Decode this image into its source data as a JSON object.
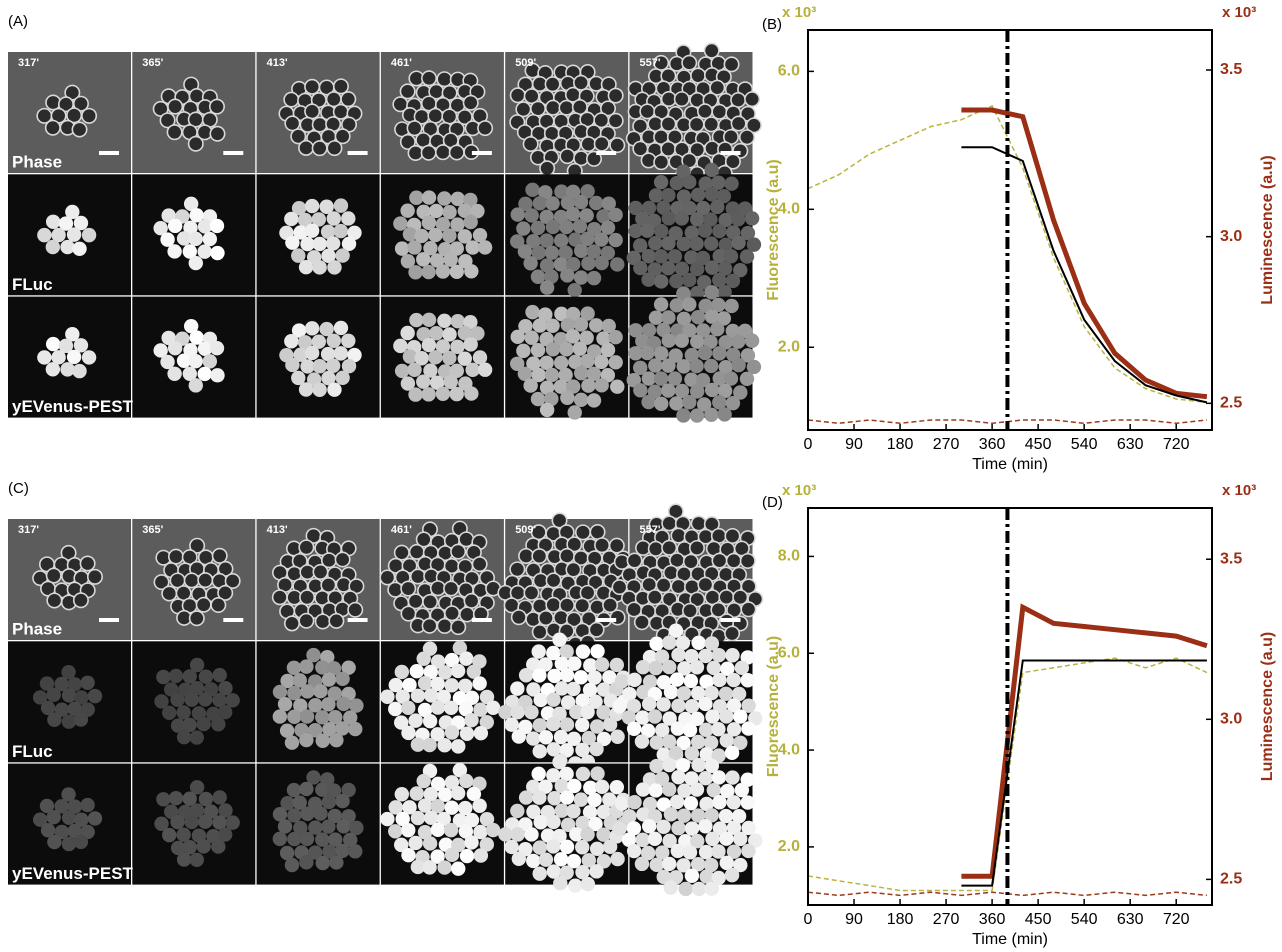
{
  "panels": [
    {
      "label": "(A)",
      "times": [
        "317'",
        "365'",
        "413'",
        "461'",
        "509'",
        "557'"
      ],
      "rows": [
        "Phase",
        "FLuc",
        "yEVenus-PEST"
      ]
    },
    {
      "label": "(C)",
      "times": [
        "317'",
        "365'",
        "413'",
        "461'",
        "509'",
        "557'"
      ],
      "rows": [
        "Phase",
        "FLuc",
        "yEVenus-PEST"
      ]
    }
  ],
  "chart_data": [
    {
      "type": "line",
      "label": "(B)",
      "xlabel": "Time (min)",
      "ylabel": "Fluorescence (a.u)",
      "y2label": "Luminescence (a.u)",
      "y_multiplier": "x 10³",
      "y2_multiplier": "x 10³",
      "x": [
        0,
        60,
        120,
        180,
        240,
        300,
        360,
        420,
        480,
        540,
        600,
        660,
        720,
        780
      ],
      "xlim": [
        0,
        790
      ],
      "xticks": [
        0,
        90,
        180,
        270,
        360,
        450,
        540,
        630,
        720
      ],
      "ylim": [
        0.8,
        6.6
      ],
      "yticks": [
        {
          "value": 2,
          "label": "2.0"
        },
        {
          "value": 4,
          "label": "4.0"
        },
        {
          "value": 6,
          "label": "6.0"
        }
      ],
      "y2lim": [
        2.42,
        3.62
      ],
      "y2ticks": [
        2.5,
        {
          "value": 3,
          "label": "3.0"
        },
        3.5
      ],
      "vline": 390,
      "series": [
        {
          "color": "#b8b43c",
          "dash": true,
          "values": [
            4.3,
            4.5,
            4.8,
            5.0,
            5.2,
            5.3,
            5.5,
            4.6,
            3.3,
            2.3,
            1.7,
            1.4,
            1.25,
            1.2
          ]
        },
        {
          "color": "#9b3a1c",
          "dash": true,
          "axis": "y2",
          "values": [
            2.45,
            2.44,
            2.45,
            2.44,
            2.45,
            2.45,
            2.44,
            2.45,
            2.45,
            2.44,
            2.45,
            2.45,
            2.44,
            2.45
          ]
        },
        {
          "color": "#9b2f16",
          "thick": true,
          "axis": "y2",
          "values": [
            null,
            null,
            null,
            null,
            null,
            3.38,
            3.38,
            3.36,
            3.05,
            2.8,
            2.65,
            2.57,
            2.53,
            2.52
          ]
        },
        {
          "color": "#000000",
          "values": [
            null,
            null,
            null,
            null,
            null,
            4.9,
            4.9,
            4.7,
            3.4,
            2.4,
            1.8,
            1.45,
            1.3,
            1.2
          ]
        }
      ]
    },
    {
      "type": "line",
      "label": "(D)",
      "xlabel": "Time (min)",
      "ylabel": "Fluorescence (a.u)",
      "y2label": "Luminescence (a.u)",
      "y_multiplier": "x 10³",
      "y2_multiplier": "x 10³",
      "x": [
        0,
        60,
        120,
        180,
        240,
        300,
        360,
        420,
        480,
        540,
        600,
        660,
        720,
        780
      ],
      "xlim": [
        0,
        790
      ],
      "xticks": [
        0,
        90,
        180,
        270,
        360,
        450,
        540,
        630,
        720
      ],
      "ylim": [
        0.8,
        9.0
      ],
      "yticks": [
        {
          "value": 2,
          "label": "2.0"
        },
        {
          "value": 4,
          "label": "4.0"
        },
        {
          "value": 6,
          "label": "6.0"
        },
        {
          "value": 8,
          "label": "8.0"
        }
      ],
      "y2lim": [
        2.42,
        3.66
      ],
      "y2ticks": [
        2.5,
        {
          "value": 3,
          "label": "3.0"
        },
        3.5
      ],
      "vline": 390,
      "series": [
        {
          "color": "#b8b43c",
          "dash": true,
          "values": [
            1.4,
            1.3,
            1.2,
            1.1,
            1.1,
            1.1,
            1.1,
            5.6,
            5.7,
            5.8,
            5.9,
            5.7,
            5.9,
            5.6
          ]
        },
        {
          "color": "#9b3a1c",
          "dash": true,
          "axis": "y2",
          "values": [
            2.46,
            2.45,
            2.46,
            2.45,
            2.46,
            2.45,
            2.46,
            2.45,
            2.46,
            2.45,
            2.46,
            2.45,
            2.46,
            2.45
          ]
        },
        {
          "color": "#9b2f16",
          "thick": true,
          "axis": "y2",
          "values": [
            null,
            null,
            null,
            null,
            null,
            2.51,
            2.51,
            3.35,
            3.3,
            3.29,
            3.28,
            3.27,
            3.26,
            3.23
          ]
        },
        {
          "color": "#000000",
          "values": [
            null,
            null,
            null,
            null,
            null,
            1.2,
            1.2,
            5.85,
            5.85,
            5.85,
            5.85,
            5.85,
            5.85,
            5.85
          ]
        }
      ]
    }
  ]
}
